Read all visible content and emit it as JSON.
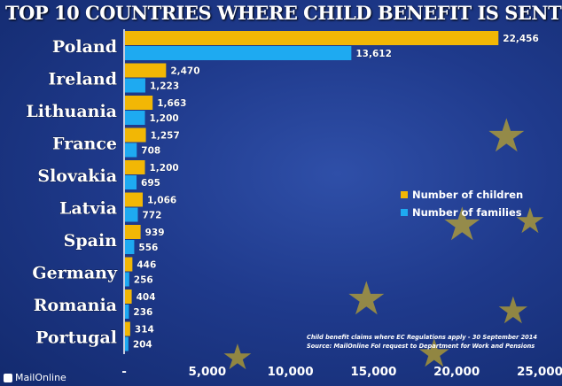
{
  "chart_data": {
    "type": "bar",
    "orientation": "horizontal",
    "title": "TOP 10 COUNTRIES WHERE CHILD BENEFIT IS SENT",
    "categories": [
      "Poland",
      "Ireland",
      "Lithuania",
      "France",
      "Slovakia",
      "Latvia",
      "Spain",
      "Germany",
      "Romania",
      "Portugal"
    ],
    "series": [
      {
        "name": "Number of children",
        "values": [
          22456,
          2470,
          1663,
          1257,
          1200,
          1066,
          939,
          446,
          404,
          314
        ],
        "labels": [
          "22,456",
          "2,470",
          "1,663",
          "1,257",
          "1,200",
          "1,066",
          "939",
          "446",
          "404",
          "314"
        ],
        "color": "#f2b705"
      },
      {
        "name": "Number of families",
        "values": [
          13612,
          1223,
          1200,
          708,
          695,
          772,
          556,
          256,
          236,
          204
        ],
        "labels": [
          "13,612",
          "1,223",
          "1,200",
          "708",
          "695",
          "772",
          "556",
          "256",
          "236",
          "204"
        ],
        "color": "#1eaaf1"
      }
    ],
    "xlim": [
      0,
      25000
    ],
    "xticks": [
      0,
      5000,
      10000,
      15000,
      20000,
      25000
    ],
    "xtick_labels": [
      "-",
      "5,000",
      "10,000",
      "15,000",
      "20,000",
      "25,000"
    ],
    "legend_position": "right",
    "grid": false
  },
  "note": {
    "line1": "Child benefit claims where EC Regulations apply - 30 September 2014",
    "line2": "Source: MailOnline FoI request to Department for Work and Pensions"
  },
  "brand": {
    "name": "MailOnline"
  },
  "colors": {
    "accent_children": "#f2b705",
    "accent_families": "#1eaaf1",
    "star": "#f2c90f"
  },
  "decorations": {
    "icon": "star-icon",
    "glyph": "★"
  }
}
